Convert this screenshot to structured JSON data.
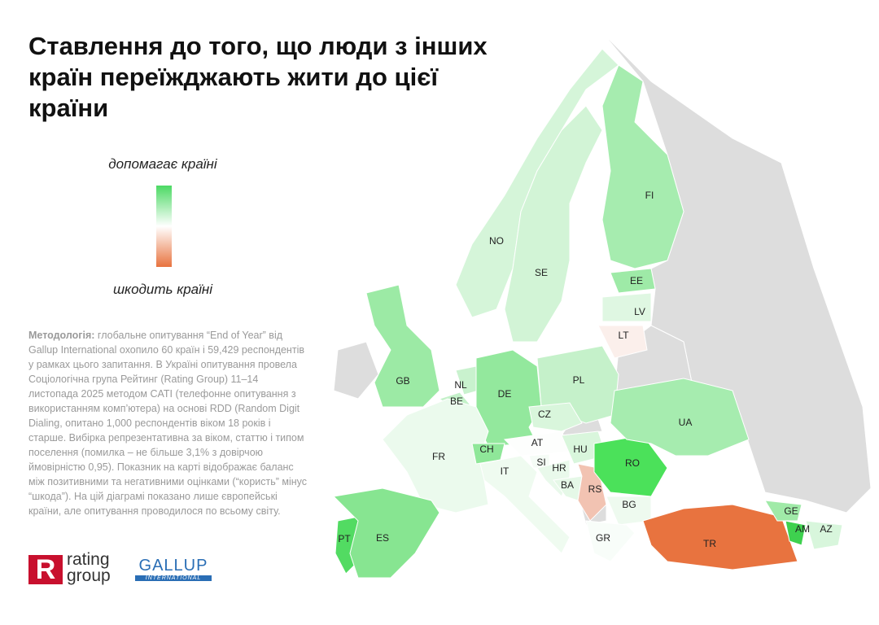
{
  "header": {
    "title": "Ставлення до того, що люди з інших країн переїжджають жити до цієї країни"
  },
  "legend": {
    "top_label": "допомагає країні",
    "bottom_label": "шкодить країні",
    "colors": [
      "#4cd964",
      "#ffffff",
      "#e8733f"
    ]
  },
  "methodology": {
    "label": "Методологія:",
    "text": "глобальне опитування “End of Year” від Gallup International охопило 60 країн і 59,429 респондентів у рамках цього запитання. В Україні опитування провела Соціологічна група Рейтинг (Rating Group) 11–14 листопада 2025 методом CATI (телефонне опитування з використанням комп’ютера) на основі RDD (Random Digit Dialing, опитано 1,000 респондентів віком 18 років і старше. Вибірка репрезентативна за віком, статтю і типом поселення (помилка – не більше 3,1% з довірчою ймовірністю 0,95). Показник на карті відображає баланс між позитивними та негативними оцінками (“користь” мінус “шкода”). На цій діаграмі показано лише європейські країни, але опитування проводилося по всьому світу."
  },
  "logos": {
    "rating_mark": "R",
    "rating_1": "rating",
    "rating_2": "group",
    "gallup": "GALLUP",
    "gallup_sub": "INTERNATIONAL"
  },
  "map": {
    "no_data_color": "#dddddd",
    "countries": [
      {
        "code": "NO",
        "color": "#d5f5d9"
      },
      {
        "code": "SE",
        "color": "#d2f4d6"
      },
      {
        "code": "FI",
        "color": "#a6ecaf"
      },
      {
        "code": "EE",
        "color": "#9eeaa7"
      },
      {
        "code": "LV",
        "color": "#dff7e2"
      },
      {
        "code": "LT",
        "color": "#fbefeb"
      },
      {
        "code": "GB",
        "color": "#9ceaa5"
      },
      {
        "code": "NL",
        "color": "#c9f2ce"
      },
      {
        "code": "BE",
        "color": "#c4f1c9"
      },
      {
        "code": "DE",
        "color": "#93e89d"
      },
      {
        "code": "PL",
        "color": "#c5f1ca"
      },
      {
        "code": "CZ",
        "color": "#d9f6dc"
      },
      {
        "code": "FR",
        "color": "#ebfaed"
      },
      {
        "code": "CH",
        "color": "#8fe799"
      },
      {
        "code": "AT",
        "color": "#fdfefd"
      },
      {
        "code": "IT",
        "color": "#effbf0"
      },
      {
        "code": "SI",
        "color": "#f5fcf6"
      },
      {
        "code": "HR",
        "color": "#e9f9eb"
      },
      {
        "code": "HU",
        "color": "#d9f6dc"
      },
      {
        "code": "BA",
        "color": "#e5f8e7"
      },
      {
        "code": "RS",
        "color": "#f2c3b2"
      },
      {
        "code": "RO",
        "color": "#4be15a"
      },
      {
        "code": "UA",
        "color": "#a6ecaf"
      },
      {
        "code": "BG",
        "color": "#eefaef"
      },
      {
        "code": "GR",
        "color": "#f8fdf9"
      },
      {
        "code": "TR",
        "color": "#e8733f"
      },
      {
        "code": "GE",
        "color": "#a0eaa8"
      },
      {
        "code": "AM",
        "color": "#3ed14f"
      },
      {
        "code": "AZ",
        "color": "#d8f6dc"
      },
      {
        "code": "PT",
        "color": "#52db62"
      },
      {
        "code": "ES",
        "color": "#87e591"
      }
    ]
  }
}
